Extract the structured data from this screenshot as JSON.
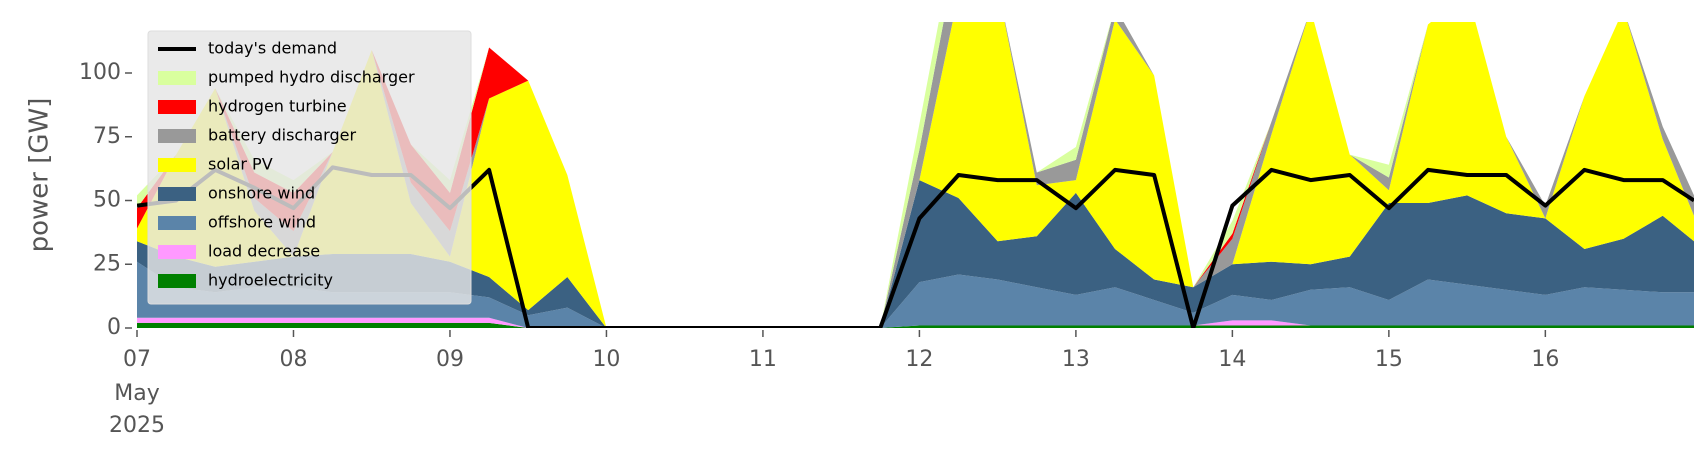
{
  "chart_data": {
    "type": "area",
    "ylabel": "power [GW]",
    "x": [
      7,
      7.25,
      7.5,
      7.75,
      8,
      8.25,
      8.5,
      8.75,
      9,
      9.25,
      9.5,
      9.75,
      10,
      10.25,
      10.5,
      10.75,
      11,
      11.25,
      11.5,
      11.75,
      12,
      12.25,
      12.5,
      12.75,
      13,
      13.25,
      13.5,
      13.75,
      14,
      14.25,
      14.5,
      14.75,
      15,
      15.25,
      15.5,
      15.75,
      16,
      16.25,
      16.5,
      16.75,
      16.95
    ],
    "xlim": [
      7,
      16.95
    ],
    "xticks": [
      {
        "value": 7,
        "label": "07"
      },
      {
        "value": 8,
        "label": "08"
      },
      {
        "value": 9,
        "label": "09"
      },
      10,
      11,
      12,
      13,
      14,
      15,
      16
    ],
    "x_month_label": "May",
    "x_year_label": "2025",
    "ylim": [
      0,
      120
    ],
    "yticks": [
      0,
      25,
      50,
      75,
      100
    ],
    "legend": "upper left",
    "series": [
      {
        "name": "pumped hydro discharger",
        "color": "#d9ff9e",
        "values": [
          5,
          0,
          0,
          5,
          5,
          0,
          0,
          0,
          5,
          0,
          0,
          0,
          0,
          0,
          0,
          0,
          0,
          0,
          0,
          0,
          10,
          10,
          0,
          0,
          5,
          0,
          0,
          0,
          5,
          0,
          0,
          0,
          5,
          0,
          0,
          0,
          0,
          0,
          0,
          0,
          0
        ]
      },
      {
        "name": "hydrogen turbine",
        "color": "#ff0000",
        "values": [
          8,
          0,
          0,
          10,
          15,
          0,
          0,
          15,
          15,
          20,
          0,
          0,
          0,
          0,
          0,
          0,
          0,
          0,
          0,
          0,
          0,
          0,
          0,
          0,
          0,
          0,
          0,
          0,
          2,
          0,
          0,
          0,
          0,
          0,
          0,
          0,
          0,
          0,
          0,
          0,
          0
        ]
      },
      {
        "name": "battery discharger",
        "color": "#999999",
        "values": [
          0,
          0,
          0,
          5,
          10,
          0,
          0,
          8,
          10,
          0,
          0,
          0,
          0,
          0,
          0,
          0,
          0,
          0,
          0,
          0,
          12,
          20,
          0,
          5,
          8,
          5,
          0,
          0,
          10,
          5,
          0,
          0,
          5,
          0,
          0,
          0,
          5,
          0,
          0,
          5,
          8
        ]
      },
      {
        "name": "solar PV",
        "color": "#ffff00",
        "values": [
          5,
          40,
          70,
          20,
          0,
          40,
          80,
          20,
          2,
          70,
          90,
          40,
          0,
          0,
          0,
          0,
          0,
          0,
          0,
          0,
          0,
          80,
          100,
          20,
          5,
          90,
          80,
          0,
          0,
          50,
          100,
          40,
          5,
          70,
          80,
          30,
          0,
          60,
          90,
          30,
          10
        ]
      },
      {
        "name": "onshore wind",
        "color": "#3b6182",
        "values": [
          8,
          12,
          10,
          10,
          12,
          15,
          15,
          15,
          12,
          8,
          2,
          12,
          0,
          0,
          0,
          0,
          0,
          0,
          0,
          0,
          40,
          30,
          15,
          20,
          40,
          15,
          8,
          10,
          12,
          15,
          10,
          12,
          38,
          30,
          35,
          30,
          30,
          15,
          20,
          30,
          20
        ]
      },
      {
        "name": "offshore wind",
        "color": "#5b84a9",
        "values": [
          22,
          12,
          10,
          12,
          12,
          10,
          10,
          10,
          10,
          8,
          5,
          8,
          0,
          0,
          0,
          0,
          0,
          0,
          0,
          0,
          17,
          20,
          18,
          15,
          12,
          15,
          10,
          5,
          10,
          8,
          14,
          15,
          10,
          18,
          16,
          14,
          12,
          15,
          14,
          13,
          13
        ]
      },
      {
        "name": "load decrease",
        "color": "#ff99ff",
        "values": [
          2,
          2,
          2,
          2,
          2,
          2,
          2,
          2,
          2,
          2,
          0,
          0,
          0,
          0,
          0,
          0,
          0,
          0,
          0,
          0,
          0,
          0,
          0,
          0,
          0,
          0,
          0,
          0,
          2,
          2,
          0,
          0,
          0,
          0,
          0,
          0,
          0,
          0,
          0,
          0,
          0
        ]
      },
      {
        "name": "hydroelectricity",
        "color": "#008000",
        "values": [
          2,
          2,
          2,
          2,
          2,
          2,
          2,
          2,
          2,
          2,
          0,
          0,
          0,
          0,
          0,
          0,
          0,
          0,
          0,
          0,
          1,
          1,
          1,
          1,
          1,
          1,
          1,
          1,
          1,
          1,
          1,
          1,
          1,
          1,
          1,
          1,
          1,
          1,
          1,
          1,
          1
        ]
      }
    ],
    "demand": {
      "name": "today's demand",
      "color": "#000000",
      "values": [
        48,
        50,
        62,
        55,
        47,
        63,
        60,
        60,
        47,
        62,
        0,
        0,
        0,
        0,
        0,
        0,
        0,
        0,
        0,
        0,
        43,
        60,
        58,
        58,
        47,
        62,
        60,
        0,
        48,
        62,
        58,
        60,
        47,
        62,
        60,
        60,
        48,
        62,
        58,
        58,
        50
      ]
    }
  }
}
